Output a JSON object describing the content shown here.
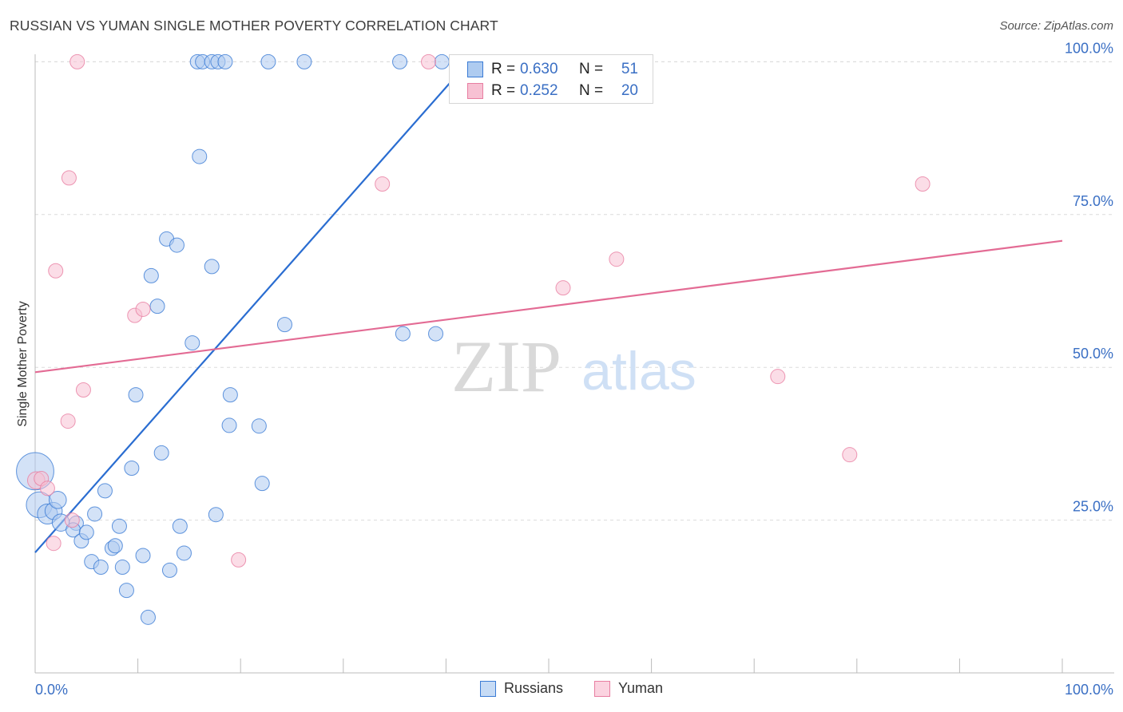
{
  "title": "RUSSIAN VS YUMAN SINGLE MOTHER POVERTY CORRELATION CHART",
  "source": "Source: ZipAtlas.com",
  "watermark": {
    "zip": "ZIP",
    "atlas": "atlas"
  },
  "colors": {
    "blue": "#3a7bd5",
    "blue_fill": "#aecbf0",
    "blue_line": "#2a6dd1",
    "pink": "#e87ea1",
    "pink_fill": "#f7c1d3",
    "pink_line": "#e36b94",
    "axis_label": "#3a6fc4",
    "grid": "#dcdcdc"
  },
  "stats": {
    "russians": {
      "r_label": "R =",
      "r": "0.630",
      "n_label": "N =",
      "n": "51"
    },
    "yuman": {
      "r_label": "R =",
      "r": "0.252",
      "n_label": "N =",
      "n": "20"
    }
  },
  "legend": {
    "russians": "Russians",
    "yuman": "Yuman"
  },
  "chart_data": {
    "type": "scatter",
    "title": "RUSSIAN VS YUMAN SINGLE MOTHER POVERTY CORRELATION CHART",
    "xlabel": "",
    "ylabel": "Single Mother Poverty",
    "xlim": [
      0,
      100
    ],
    "ylim": [
      0,
      105
    ],
    "x_tick_labels": [
      "0.0%",
      "100.0%"
    ],
    "y_ticks": [
      25,
      50,
      75,
      100
    ],
    "y_tick_labels": [
      "25.0%",
      "50.0%",
      "75.0%",
      "100.0%"
    ],
    "grid": true,
    "series": [
      {
        "name": "Russians",
        "r": 0.63,
        "n": 51,
        "trend": [
          [
            0,
            19.7
          ],
          [
            42.2,
            100
          ]
        ],
        "points": [
          [
            0,
            33,
            2.6
          ],
          [
            0.4,
            27.5,
            1.8
          ],
          [
            1.2,
            26,
            1.4
          ],
          [
            1.8,
            26.5,
            1.2
          ],
          [
            2.2,
            28.3,
            1.2
          ],
          [
            2.5,
            24.6,
            1.2
          ],
          [
            4.0,
            24.5,
            1
          ],
          [
            3.7,
            23.4,
            1
          ],
          [
            4.5,
            21.6,
            1
          ],
          [
            5,
            23,
            1
          ],
          [
            5.5,
            18.2,
            1
          ],
          [
            5.8,
            26,
            1
          ],
          [
            6.4,
            17.3,
            1
          ],
          [
            6.8,
            29.8,
            1
          ],
          [
            7.5,
            20.4,
            1
          ],
          [
            7.8,
            20.8,
            1
          ],
          [
            8.2,
            24,
            1
          ],
          [
            8.5,
            17.3,
            1
          ],
          [
            8.9,
            13.5,
            1
          ],
          [
            9.4,
            33.5,
            1
          ],
          [
            9.8,
            45.5,
            1
          ],
          [
            10.5,
            19.2,
            1
          ],
          [
            11.0,
            9.1,
            1
          ],
          [
            11.3,
            65,
            1
          ],
          [
            11.9,
            60,
            1
          ],
          [
            12.3,
            36,
            1
          ],
          [
            12.8,
            71,
            1
          ],
          [
            13.1,
            16.8,
            1
          ],
          [
            13.8,
            70,
            1
          ],
          [
            14.1,
            24,
            1
          ],
          [
            14.5,
            19.6,
            1
          ],
          [
            15.3,
            54,
            1
          ],
          [
            15.8,
            100,
            1
          ],
          [
            16.0,
            84.5,
            1
          ],
          [
            16.3,
            100,
            1
          ],
          [
            17.2,
            100,
            1
          ],
          [
            17.2,
            66.5,
            1
          ],
          [
            17.6,
            25.9,
            1
          ],
          [
            17.8,
            100,
            1
          ],
          [
            18.5,
            100,
            1
          ],
          [
            19.0,
            45.5,
            1
          ],
          [
            18.9,
            40.5,
            1
          ],
          [
            21.8,
            40.4,
            1
          ],
          [
            22.1,
            31,
            1
          ],
          [
            22.7,
            100,
            1
          ],
          [
            24.3,
            57,
            1
          ],
          [
            26.2,
            100,
            1
          ],
          [
            35.5,
            100,
            1
          ],
          [
            35.8,
            55.5,
            1
          ],
          [
            39.0,
            55.5,
            1
          ],
          [
            39.6,
            100,
            1
          ]
        ]
      },
      {
        "name": "Yuman",
        "r": 0.252,
        "n": 20,
        "trend": [
          [
            0,
            49.2
          ],
          [
            100,
            70.7
          ]
        ],
        "points": [
          [
            0.1,
            31.5,
            1.2
          ],
          [
            0.6,
            31.8,
            1
          ],
          [
            1.2,
            30.2,
            1
          ],
          [
            1.8,
            21.2,
            1
          ],
          [
            2.0,
            65.8,
            1
          ],
          [
            3.3,
            81,
            1
          ],
          [
            3.2,
            41.2,
            1
          ],
          [
            3.6,
            25,
            1
          ],
          [
            4.1,
            100,
            1
          ],
          [
            4.7,
            46.3,
            1
          ],
          [
            9.7,
            58.5,
            1
          ],
          [
            10.5,
            59.5,
            1
          ],
          [
            19.8,
            18.5,
            1
          ],
          [
            33.8,
            80,
            1
          ],
          [
            38.3,
            100,
            1
          ],
          [
            51.4,
            63,
            1
          ],
          [
            56.6,
            67.7,
            1
          ],
          [
            72.3,
            48.5,
            1
          ],
          [
            79.3,
            35.7,
            1
          ],
          [
            86.4,
            80,
            1
          ]
        ]
      }
    ]
  }
}
